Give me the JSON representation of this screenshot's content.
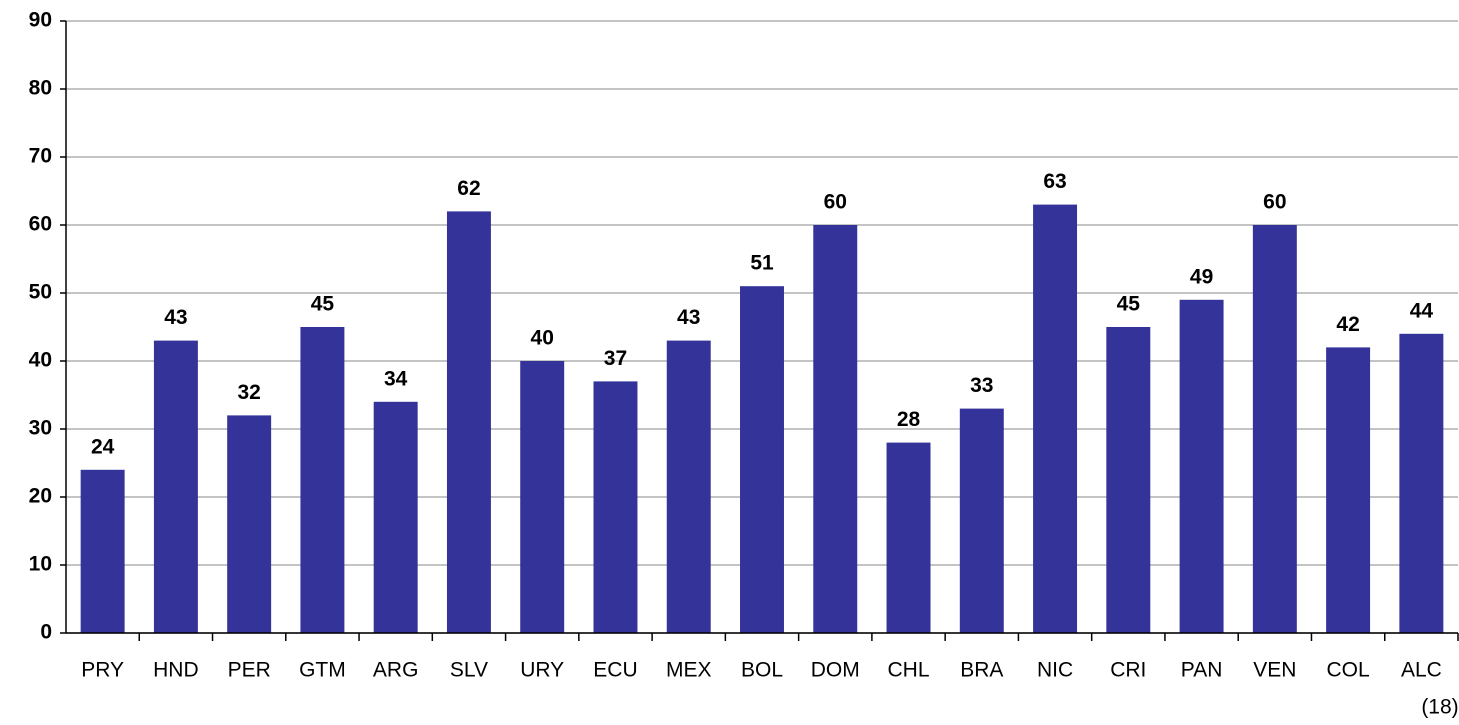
{
  "chart_data": {
    "type": "bar",
    "categories": [
      "PRY",
      "HND",
      "PER",
      "GTM",
      "ARG",
      "SLV",
      "URY",
      "ECU",
      "MEX",
      "BOL",
      "DOM",
      "CHL",
      "BRA",
      "NIC",
      "CRI",
      "PAN",
      "VEN",
      "COL",
      "ALC"
    ],
    "values": [
      24,
      43,
      32,
      45,
      34,
      62,
      40,
      37,
      43,
      51,
      60,
      28,
      33,
      63,
      45,
      49,
      60,
      42,
      44
    ],
    "color": "#333399",
    "annotation": "(18)",
    "ylim": [
      0,
      90
    ],
    "yticks": [
      0,
      10,
      20,
      30,
      40,
      50,
      60,
      70,
      80,
      90
    ],
    "grid": true
  }
}
